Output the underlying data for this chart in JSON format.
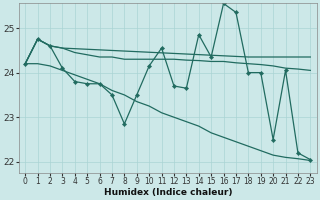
{
  "xlabel": "Humidex (Indice chaleur)",
  "bg_color": "#cce8e8",
  "grid_color": "#aad4d4",
  "line_color": "#216b60",
  "xlim": [
    -0.5,
    23.5
  ],
  "ylim": [
    21.75,
    25.55
  ],
  "yticks": [
    22,
    23,
    24,
    25
  ],
  "xticks": [
    0,
    1,
    2,
    3,
    4,
    5,
    6,
    7,
    8,
    9,
    10,
    11,
    12,
    13,
    14,
    15,
    16,
    17,
    18,
    19,
    20,
    21,
    22,
    23
  ],
  "line_marker_x": [
    0,
    1,
    2,
    3,
    4,
    5,
    6,
    7,
    8,
    9,
    10,
    11,
    12,
    13,
    14,
    15,
    16,
    17,
    18,
    19,
    20,
    21,
    22,
    23
  ],
  "line_marker_y": [
    24.2,
    24.75,
    24.6,
    24.1,
    23.8,
    23.75,
    23.75,
    23.5,
    22.85,
    23.5,
    24.15,
    24.55,
    23.7,
    23.65,
    24.85,
    24.35,
    25.55,
    25.35,
    24.0,
    24.0,
    22.5,
    24.05,
    22.2,
    22.05
  ],
  "line_flat1_x": [
    0,
    1,
    2,
    3,
    18,
    23
  ],
  "line_flat1_y": [
    24.2,
    24.75,
    24.6,
    24.55,
    24.35,
    24.35
  ],
  "line_flat2_x": [
    0,
    1,
    2,
    3,
    4,
    5,
    6,
    7,
    8,
    9,
    10,
    11,
    12,
    13,
    14,
    15,
    16,
    17,
    18,
    19,
    20,
    21,
    22,
    23
  ],
  "line_flat2_y": [
    24.2,
    24.75,
    24.6,
    24.55,
    24.45,
    24.4,
    24.35,
    24.35,
    24.3,
    24.3,
    24.3,
    24.3,
    24.3,
    24.28,
    24.27,
    24.25,
    24.25,
    24.22,
    24.2,
    24.18,
    24.15,
    24.1,
    24.08,
    24.05
  ],
  "line_diag_x": [
    0,
    1,
    2,
    3,
    4,
    5,
    6,
    7,
    8,
    9,
    10,
    11,
    12,
    13,
    14,
    15,
    16,
    17,
    18,
    19,
    20,
    21,
    22,
    23
  ],
  "line_diag_y": [
    24.2,
    24.2,
    24.15,
    24.05,
    23.95,
    23.85,
    23.75,
    23.6,
    23.5,
    23.35,
    23.25,
    23.1,
    23.0,
    22.9,
    22.8,
    22.65,
    22.55,
    22.45,
    22.35,
    22.25,
    22.15,
    22.1,
    22.07,
    22.03
  ]
}
